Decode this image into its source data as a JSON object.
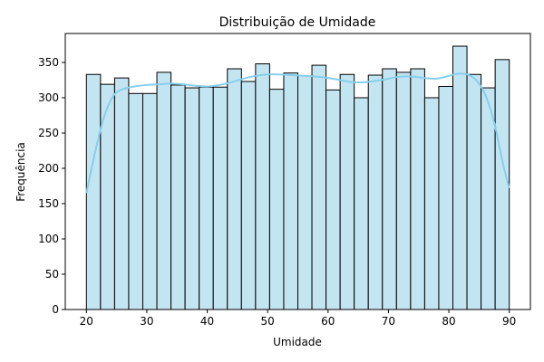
{
  "chart_data": {
    "type": "bar",
    "title": "Distribuição de Umidade",
    "xlabel": "Umidade",
    "ylabel": "Frequência",
    "bin_edges": [
      20,
      22.333,
      24.667,
      27,
      29.333,
      31.667,
      34,
      36.333,
      38.667,
      41,
      43.333,
      45.667,
      48,
      50.333,
      52.667,
      55,
      57.333,
      59.667,
      62,
      64.333,
      66.667,
      69,
      71.333,
      73.667,
      76,
      78.333,
      80.667,
      83,
      85.333,
      87.667,
      90
    ],
    "values": [
      333,
      319,
      328,
      306,
      306,
      336,
      318,
      314,
      315,
      315,
      341,
      323,
      348,
      312,
      335,
      331,
      346,
      311,
      333,
      300,
      332,
      341,
      336,
      341,
      300,
      316,
      373,
      333,
      314,
      354
    ],
    "kde": {
      "x": [
        20,
        21.5,
        23,
        24.5,
        26,
        28,
        30,
        32,
        34,
        36,
        38,
        40,
        42,
        44,
        46,
        48,
        50,
        52,
        54,
        56,
        58,
        60,
        62,
        64,
        66,
        68,
        70,
        72,
        74,
        76,
        78,
        80,
        81.5,
        83,
        84.5,
        86,
        87.5,
        89,
        90
      ],
      "y": [
        165,
        225,
        275,
        303,
        312,
        316,
        318,
        319,
        320,
        319,
        317,
        316,
        318,
        322,
        327,
        331,
        333,
        333,
        332,
        331,
        330,
        328,
        325,
        322,
        322,
        324,
        327,
        330,
        330,
        328,
        327,
        331,
        334,
        333,
        325,
        305,
        265,
        205,
        172
      ]
    },
    "xlim": [
      16.5,
      93.5
    ],
    "ylim": [
      0,
      391
    ],
    "xticks": [
      20,
      30,
      40,
      50,
      60,
      70,
      80,
      90
    ],
    "yticks": [
      0,
      50,
      100,
      150,
      200,
      250,
      300,
      350
    ],
    "grid": false,
    "colors": {
      "bar_fill": "#c3e5f2",
      "bar_edge": "#000000",
      "kde_line": "#87ceeb"
    }
  }
}
